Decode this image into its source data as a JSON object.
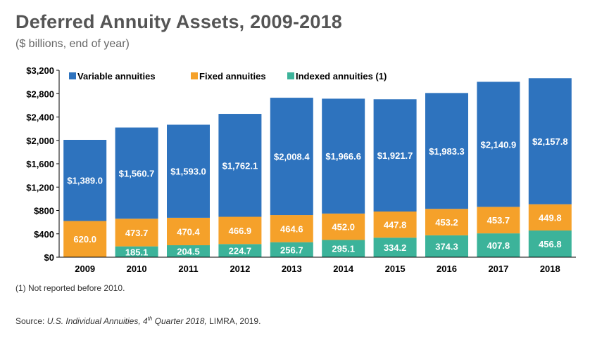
{
  "page": {
    "title": "Deferred Annuity Assets, 2009-2018",
    "subtitle": "($ billions, end of year)",
    "note": "(1) Not reported before 2010.",
    "source": {
      "prefix": "Source: ",
      "italic_main": "U.S. Individual Annuities, 4",
      "italic_sup": "th",
      "italic_tail": " Quarter 2018,",
      "suffix": " LIMRA, 2019."
    }
  },
  "chart_data": {
    "type": "bar",
    "stacked": true,
    "categories": [
      "2009",
      "2010",
      "2011",
      "2012",
      "2013",
      "2014",
      "2015",
      "2016",
      "2017",
      "2018"
    ],
    "series": [
      {
        "name": "Indexed annuities (1)",
        "color": "#3cb39a",
        "values": [
          null,
          185.1,
          204.5,
          224.7,
          256.7,
          295.1,
          334.2,
          374.3,
          407.8,
          456.8
        ],
        "labels": [
          "",
          "185.1",
          "204.5",
          "224.7",
          "256.7",
          "295.1",
          "334.2",
          "374.3",
          "407.8",
          "456.8"
        ]
      },
      {
        "name": "Fixed annuities",
        "color": "#f5a12a",
        "values": [
          620.0,
          473.7,
          470.4,
          466.9,
          464.6,
          452.0,
          447.8,
          453.2,
          453.7,
          449.8
        ],
        "labels": [
          "620.0",
          "473.7",
          "470.4",
          "466.9",
          "464.6",
          "452.0",
          "447.8",
          "453.2",
          "453.7",
          "449.8"
        ]
      },
      {
        "name": "Variable annuities",
        "color": "#2e73be",
        "values": [
          1389.0,
          1560.7,
          1593.0,
          1762.1,
          2008.4,
          1966.6,
          1921.7,
          1983.3,
          2140.9,
          2157.8
        ],
        "labels": [
          "$1,389.0",
          "$1,560.7",
          "$1,593.0",
          "$1,762.1",
          "$2,008.4",
          "$1,966.6",
          "$1,921.7",
          "$1,983.3",
          "$2,140.9",
          "$2,157.8"
        ]
      }
    ],
    "legend_order": [
      "Variable annuities",
      "Fixed annuities",
      "Indexed annuities (1)"
    ],
    "legend_position": "top",
    "ylim": [
      0,
      3200
    ],
    "yticks": [
      0,
      400,
      800,
      1200,
      1600,
      2000,
      2400,
      2800,
      3200
    ],
    "ytick_labels": [
      "$0",
      "$400",
      "$800",
      "$1,200",
      "$1,600",
      "$2,000",
      "$2,400",
      "$2,800",
      "$3,200"
    ],
    "grid": false
  }
}
